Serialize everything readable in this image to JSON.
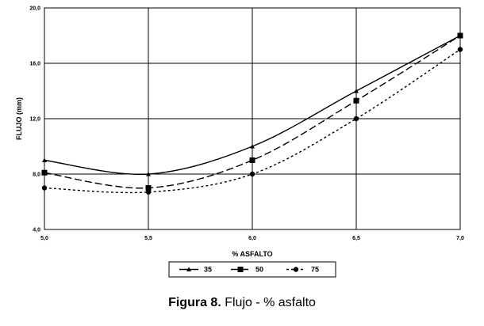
{
  "chart_data": {
    "type": "line",
    "title": "",
    "xlabel": "% ASFALTO",
    "ylabel": "FLUJO (mm)",
    "x": [
      5.0,
      5.5,
      6.0,
      6.5,
      7.0
    ],
    "x_tick_labels": [
      "5,0",
      "5,5",
      "6,0",
      "6,5",
      "7,0"
    ],
    "xlim": [
      5.0,
      7.0
    ],
    "y_tick_values": [
      4.0,
      8.0,
      12.0,
      16.0,
      20.0
    ],
    "y_tick_labels": [
      "4,0",
      "8,0",
      "12,0",
      "16,0",
      "20,0"
    ],
    "ylim": [
      4.0,
      20.0
    ],
    "grid": true,
    "legend_position": "bottom-center",
    "series": [
      {
        "name": "35",
        "values": [
          9.0,
          8.0,
          10.0,
          14.0,
          18.0
        ],
        "marker": "triangle",
        "dash": "solid",
        "color": "#000000"
      },
      {
        "name": "50",
        "values": [
          8.1,
          7.0,
          9.0,
          13.3,
          18.0
        ],
        "marker": "square",
        "dash": "long-dash",
        "color": "#000000"
      },
      {
        "name": "75",
        "values": [
          7.0,
          6.7,
          8.0,
          12.0,
          17.0
        ],
        "marker": "circle",
        "dash": "short-dash",
        "color": "#000000"
      }
    ]
  },
  "caption": {
    "figure_label": "Figura 8.",
    "text": " Flujo - % asfalto"
  }
}
